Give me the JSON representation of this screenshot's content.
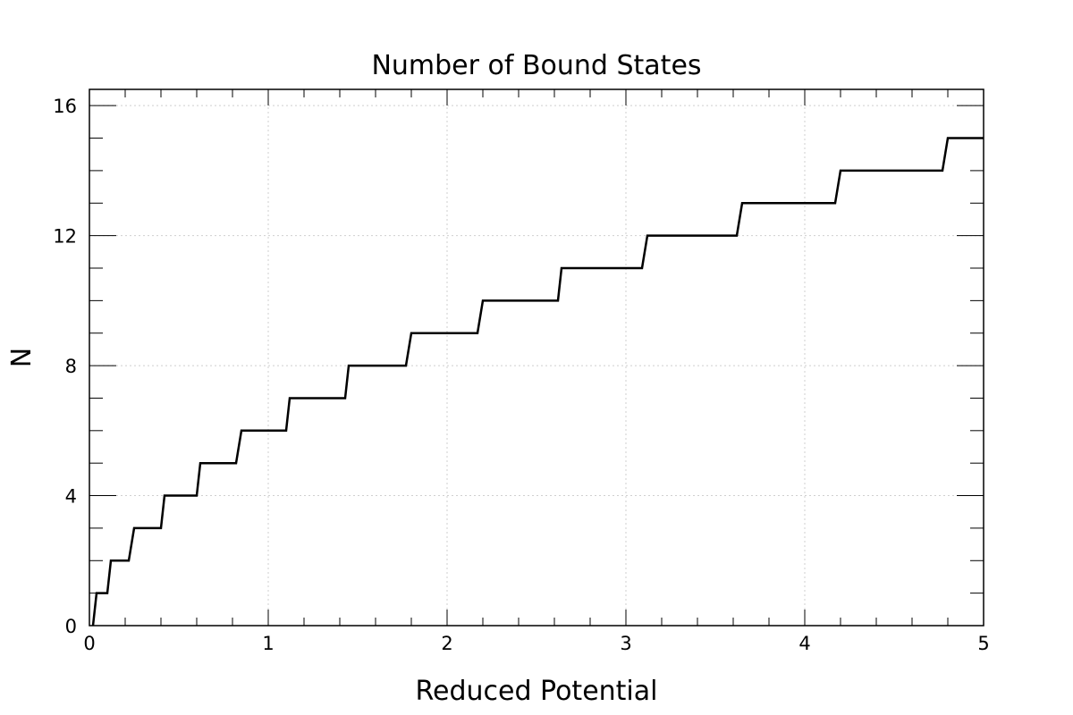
{
  "chart_data": {
    "type": "line",
    "title": "Number of Bound States",
    "xlabel": "Reduced Potential",
    "ylabel": "N",
    "xlim": [
      0,
      5
    ],
    "ylim": [
      0,
      16.5
    ],
    "x_ticks": [
      "0",
      "1",
      "2",
      "3",
      "4",
      "5"
    ],
    "y_ticks": [
      "0",
      "4",
      "8",
      "12",
      "16"
    ],
    "grid": true,
    "series": [
      {
        "x": [
          0.02,
          0.04,
          0.1,
          0.12,
          0.22,
          0.25,
          0.4,
          0.42,
          0.6,
          0.62,
          0.82,
          0.85,
          1.1,
          1.12,
          1.43,
          1.45,
          1.77,
          1.8,
          2.17,
          2.2,
          2.62,
          2.64,
          3.09,
          3.12,
          3.62,
          3.65,
          4.17,
          4.2,
          4.77,
          4.8,
          5.0
        ],
        "y": [
          0,
          1,
          1,
          2,
          2,
          3,
          3,
          4,
          4,
          5,
          5,
          6,
          6,
          7,
          7,
          8,
          8,
          9,
          9,
          10,
          10,
          11,
          11,
          12,
          12,
          13,
          13,
          14,
          14,
          15,
          15
        ]
      }
    ]
  }
}
